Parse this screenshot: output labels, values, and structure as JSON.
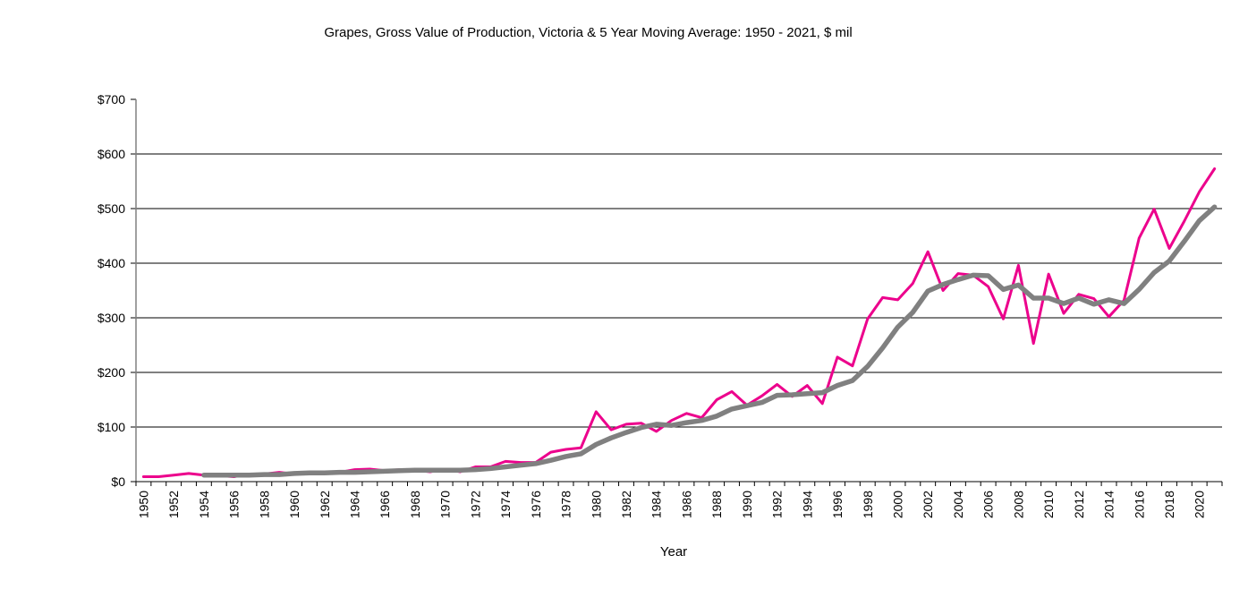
{
  "chart_data": {
    "type": "line",
    "title": "Grapes, Gross Value of Production, Victoria & 5 Year Moving Average: 1950 - 2021, $ mil",
    "xlabel": "Year",
    "ylabel": "",
    "ylim": [
      0,
      700
    ],
    "yticks": [
      0,
      100,
      200,
      300,
      400,
      500,
      600,
      700
    ],
    "ytick_labels": [
      "$0",
      "$100",
      "$200",
      "$300",
      "$400",
      "$500",
      "$600",
      "$700"
    ],
    "xtick_labels": [
      "1950",
      "1952",
      "1954",
      "1956",
      "1958",
      "1960",
      "1962",
      "1964",
      "1966",
      "1968",
      "1970",
      "1972",
      "1974",
      "1976",
      "1978",
      "1980",
      "1982",
      "1984",
      "1986",
      "1988",
      "1990",
      "1992",
      "1994",
      "1996",
      "1998",
      "2000",
      "2002",
      "2004",
      "2006",
      "2008",
      "2010",
      "2012",
      "2014",
      "2016",
      "2018",
      "2020"
    ],
    "grid": "horizontal",
    "legend": "none",
    "x": [
      1950,
      1951,
      1952,
      1953,
      1954,
      1955,
      1956,
      1957,
      1958,
      1959,
      1960,
      1961,
      1962,
      1963,
      1964,
      1965,
      1966,
      1967,
      1968,
      1969,
      1970,
      1971,
      1972,
      1973,
      1974,
      1975,
      1976,
      1977,
      1978,
      1979,
      1980,
      1981,
      1982,
      1983,
      1984,
      1985,
      1986,
      1987,
      1988,
      1989,
      1990,
      1991,
      1992,
      1993,
      1994,
      1995,
      1996,
      1997,
      1998,
      1999,
      2000,
      2001,
      2002,
      2003,
      2004,
      2005,
      2006,
      2007,
      2008,
      2009,
      2010,
      2011,
      2012,
      2013,
      2014,
      2015,
      2016,
      2017,
      2018,
      2019,
      2020,
      2021
    ],
    "series": [
      {
        "name": "Gross Value of Production",
        "color": "#EC008C",
        "values": [
          9,
          9,
          12,
          15,
          12,
          11,
          9,
          14,
          14,
          17,
          14,
          16,
          17,
          17,
          22,
          23,
          20,
          22,
          21,
          18,
          23,
          18,
          27,
          27,
          37,
          35,
          35,
          54,
          59,
          62,
          128,
          95,
          105,
          107,
          92,
          112,
          125,
          117,
          150,
          165,
          140,
          157,
          178,
          156,
          176,
          143,
          228,
          212,
          298,
          337,
          333,
          363,
          421,
          350,
          381,
          378,
          357,
          298,
          396,
          253,
          380,
          308,
          343,
          335,
          302,
          332,
          446,
          499,
          427,
          477,
          531,
          573
        ]
      },
      {
        "name": "5 Year Moving Average",
        "color": "#808080",
        "values": [
          null,
          null,
          null,
          null,
          12,
          12,
          12,
          12,
          13,
          13,
          15,
          16,
          16,
          17,
          17,
          18,
          19,
          20,
          21,
          21,
          21,
          21,
          22,
          24,
          27,
          30,
          33,
          39,
          46,
          51,
          68,
          80,
          90,
          99,
          105,
          103,
          108,
          112,
          120,
          133,
          139,
          145,
          158,
          159,
          161,
          163,
          176,
          185,
          211,
          245,
          283,
          310,
          349,
          361,
          370,
          378,
          377,
          352,
          360,
          336,
          336,
          326,
          336,
          325,
          333,
          326,
          352,
          383,
          404,
          440,
          478,
          503
        ]
      }
    ]
  }
}
